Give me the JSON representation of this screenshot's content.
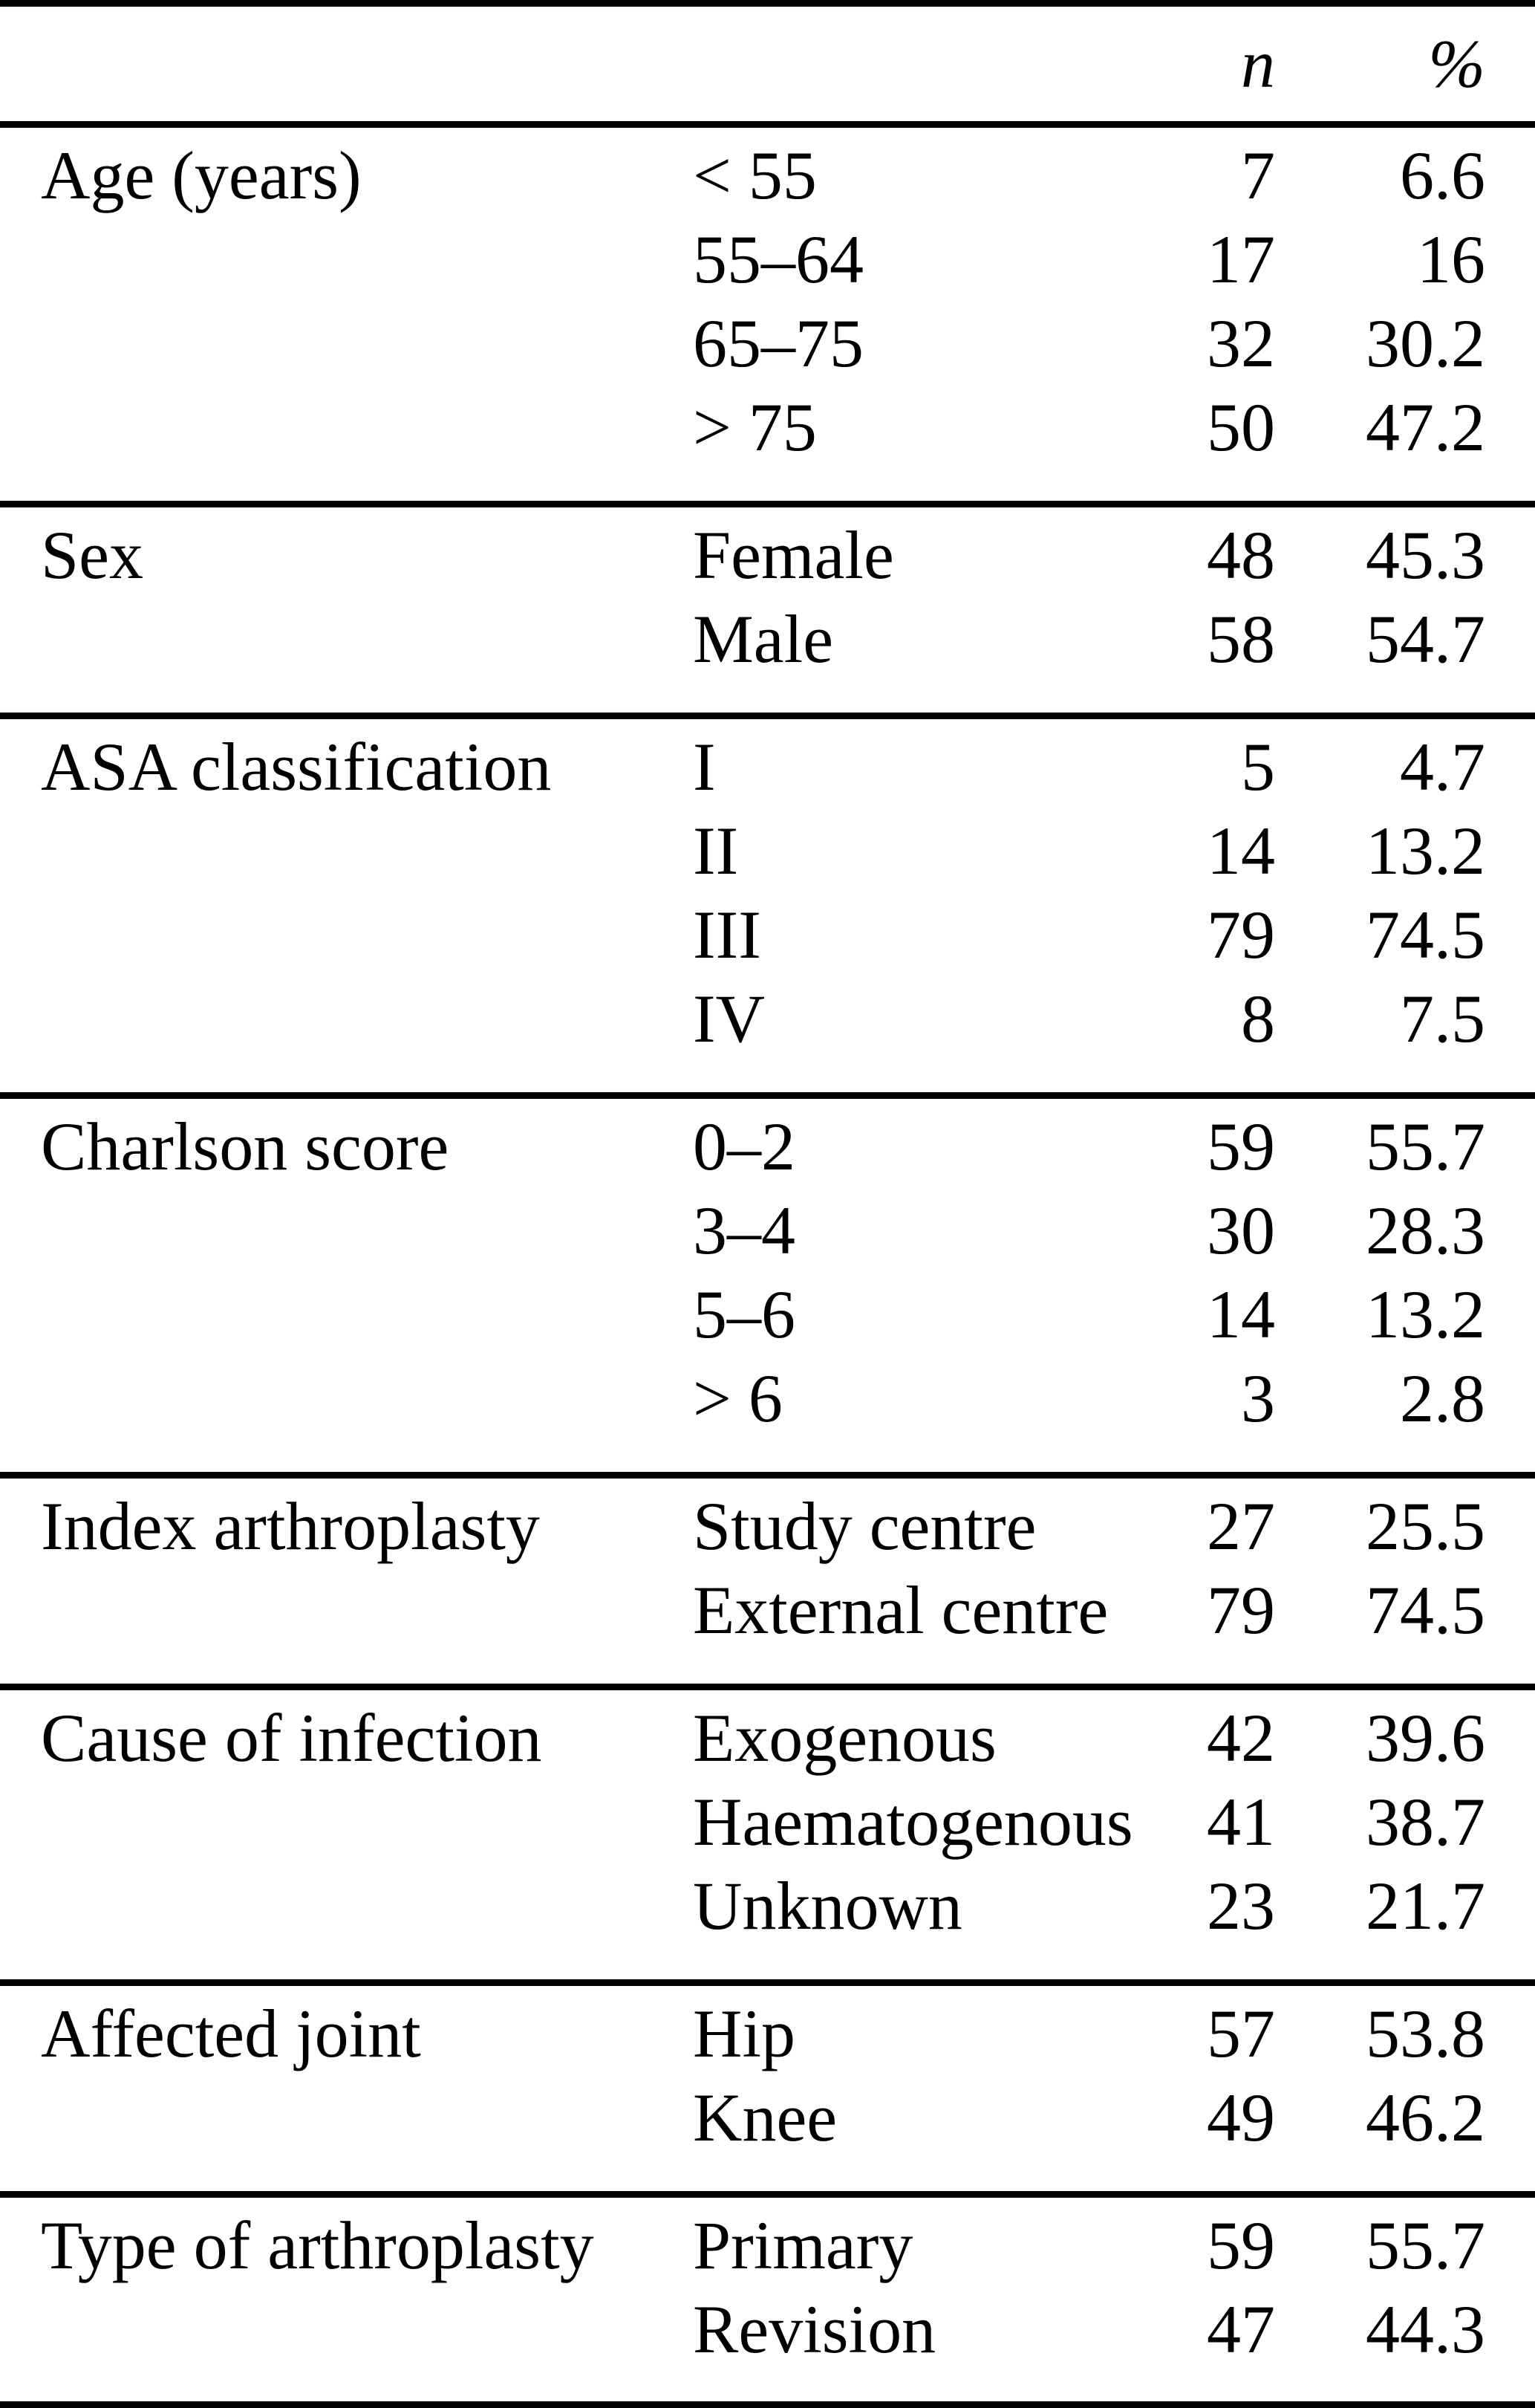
{
  "colors": {
    "text": "#000000",
    "background": "#ffffff",
    "rule": "#000000"
  },
  "table": {
    "header": {
      "col_n": "n",
      "col_pct": "%"
    },
    "sections": [
      {
        "category": "Age (years)",
        "rows": [
          {
            "label": "< 55",
            "n": "7",
            "pct": "6.6"
          },
          {
            "label": "55–64",
            "n": "17",
            "pct": "16"
          },
          {
            "label": "65–75",
            "n": "32",
            "pct": "30.2"
          },
          {
            "label": "> 75",
            "n": "50",
            "pct": "47.2"
          }
        ]
      },
      {
        "category": "Sex",
        "rows": [
          {
            "label": "Female",
            "n": "48",
            "pct": "45.3"
          },
          {
            "label": "Male",
            "n": "58",
            "pct": "54.7"
          }
        ]
      },
      {
        "category": "ASA classification",
        "rows": [
          {
            "label": "I",
            "n": "5",
            "pct": "4.7"
          },
          {
            "label": "II",
            "n": "14",
            "pct": "13.2"
          },
          {
            "label": "III",
            "n": "79",
            "pct": "74.5"
          },
          {
            "label": "IV",
            "n": "8",
            "pct": "7.5"
          }
        ]
      },
      {
        "category": "Charlson score",
        "rows": [
          {
            "label": "0–2",
            "n": "59",
            "pct": "55.7"
          },
          {
            "label": "3–4",
            "n": "30",
            "pct": "28.3"
          },
          {
            "label": "5–6",
            "n": "14",
            "pct": "13.2"
          },
          {
            "label": "> 6",
            "n": "3",
            "pct": "2.8"
          }
        ]
      },
      {
        "category": "Index arthroplasty",
        "rows": [
          {
            "label": "Study centre",
            "n": "27",
            "pct": "25.5"
          },
          {
            "label": "External centre",
            "n": "79",
            "pct": "74.5"
          }
        ]
      },
      {
        "category": "Cause of infection",
        "rows": [
          {
            "label": "Exogenous",
            "n": "42",
            "pct": "39.6"
          },
          {
            "label": "Haematogenous",
            "n": "41",
            "pct": "38.7"
          },
          {
            "label": "Unknown",
            "n": "23",
            "pct": "21.7"
          }
        ]
      },
      {
        "category": "Affected joint",
        "rows": [
          {
            "label": "Hip",
            "n": "57",
            "pct": "53.8"
          },
          {
            "label": "Knee",
            "n": "49",
            "pct": "46.2"
          }
        ]
      },
      {
        "category": "Type of arthroplasty",
        "rows": [
          {
            "label": "Primary",
            "n": "59",
            "pct": "55.7"
          },
          {
            "label": "Revision",
            "n": "47",
            "pct": "44.3"
          }
        ]
      }
    ]
  }
}
